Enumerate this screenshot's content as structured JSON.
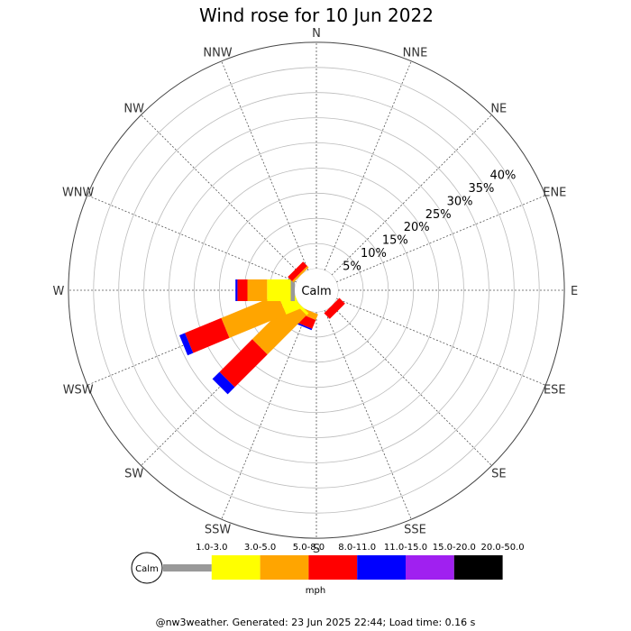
{
  "chart_data": {
    "type": "wind-rose",
    "title": "Wind rose for 10 Jun 2022",
    "directions": [
      "N",
      "NNE",
      "NE",
      "ENE",
      "E",
      "ESE",
      "SE",
      "SSE",
      "S",
      "SSW",
      "SW",
      "WSW",
      "W",
      "WNW",
      "NW",
      "NNW"
    ],
    "rings_percent": [
      5,
      10,
      15,
      20,
      25,
      30,
      35,
      40
    ],
    "ring_labels": [
      "5%",
      "10%",
      "15%",
      "20%",
      "25%",
      "30%",
      "35%",
      "40%"
    ],
    "calm_label": "Calm",
    "unit": "mph",
    "speed_bins": [
      {
        "label": "1.0-3.0",
        "color": "#999999"
      },
      {
        "label": "3.0-5.0",
        "color": "#ffff00"
      },
      {
        "label": "5.0-8.0",
        "color": "#ffa500"
      },
      {
        "label": "8.0-11.0",
        "color": "#ff0000"
      },
      {
        "label": "11.0-15.0",
        "color": "#0000ff"
      },
      {
        "label": "15.0-20.0",
        "color": "#a020f0"
      },
      {
        "label": "20.0-50.0",
        "color": "#000000"
      }
    ],
    "series": [
      {
        "direction": "SE",
        "cumulative_percent": [
          0.0,
          0.0,
          0.0,
          1.6,
          1.6,
          1.6,
          1.6
        ]
      },
      {
        "direction": "SSE",
        "cumulative_percent": [
          0.0,
          0.0,
          0.0,
          0.0,
          0.0,
          0.0,
          0.0
        ]
      },
      {
        "direction": "S",
        "cumulative_percent": [
          0.0,
          0.0,
          0.0,
          0.0,
          0.0,
          0.0,
          0.0
        ]
      },
      {
        "direction": "SSW",
        "cumulative_percent": [
          0.0,
          0.0,
          1.2,
          3.1,
          3.4,
          3.4,
          3.4
        ]
      },
      {
        "direction": "SW",
        "cumulative_percent": [
          0.0,
          0.6,
          11.6,
          20.8,
          22.8,
          22.8,
          22.8
        ]
      },
      {
        "direction": "WSW",
        "cumulative_percent": [
          0.0,
          3.1,
          15.3,
          23.1,
          24.3,
          24.3,
          24.3
        ]
      },
      {
        "direction": "W",
        "cumulative_percent": [
          0.8,
          5.5,
          9.4,
          11.4,
          11.8,
          11.8,
          11.8
        ]
      },
      {
        "direction": "WNW",
        "cumulative_percent": [
          0.0,
          0.0,
          0.0,
          0.0,
          0.0,
          0.0,
          0.0
        ]
      },
      {
        "direction": "NW",
        "cumulative_percent": [
          0.0,
          0.0,
          0.4,
          1.6,
          1.6,
          1.6,
          1.6
        ]
      },
      {
        "direction": "N",
        "cumulative_percent": [
          0.0,
          0.0,
          0.0,
          0.0,
          0.0,
          0.0,
          0.0
        ]
      }
    ]
  },
  "footer": "@nw3weather. Generated: 23 Jun 2025 22:44; Load time: 0.16 s"
}
